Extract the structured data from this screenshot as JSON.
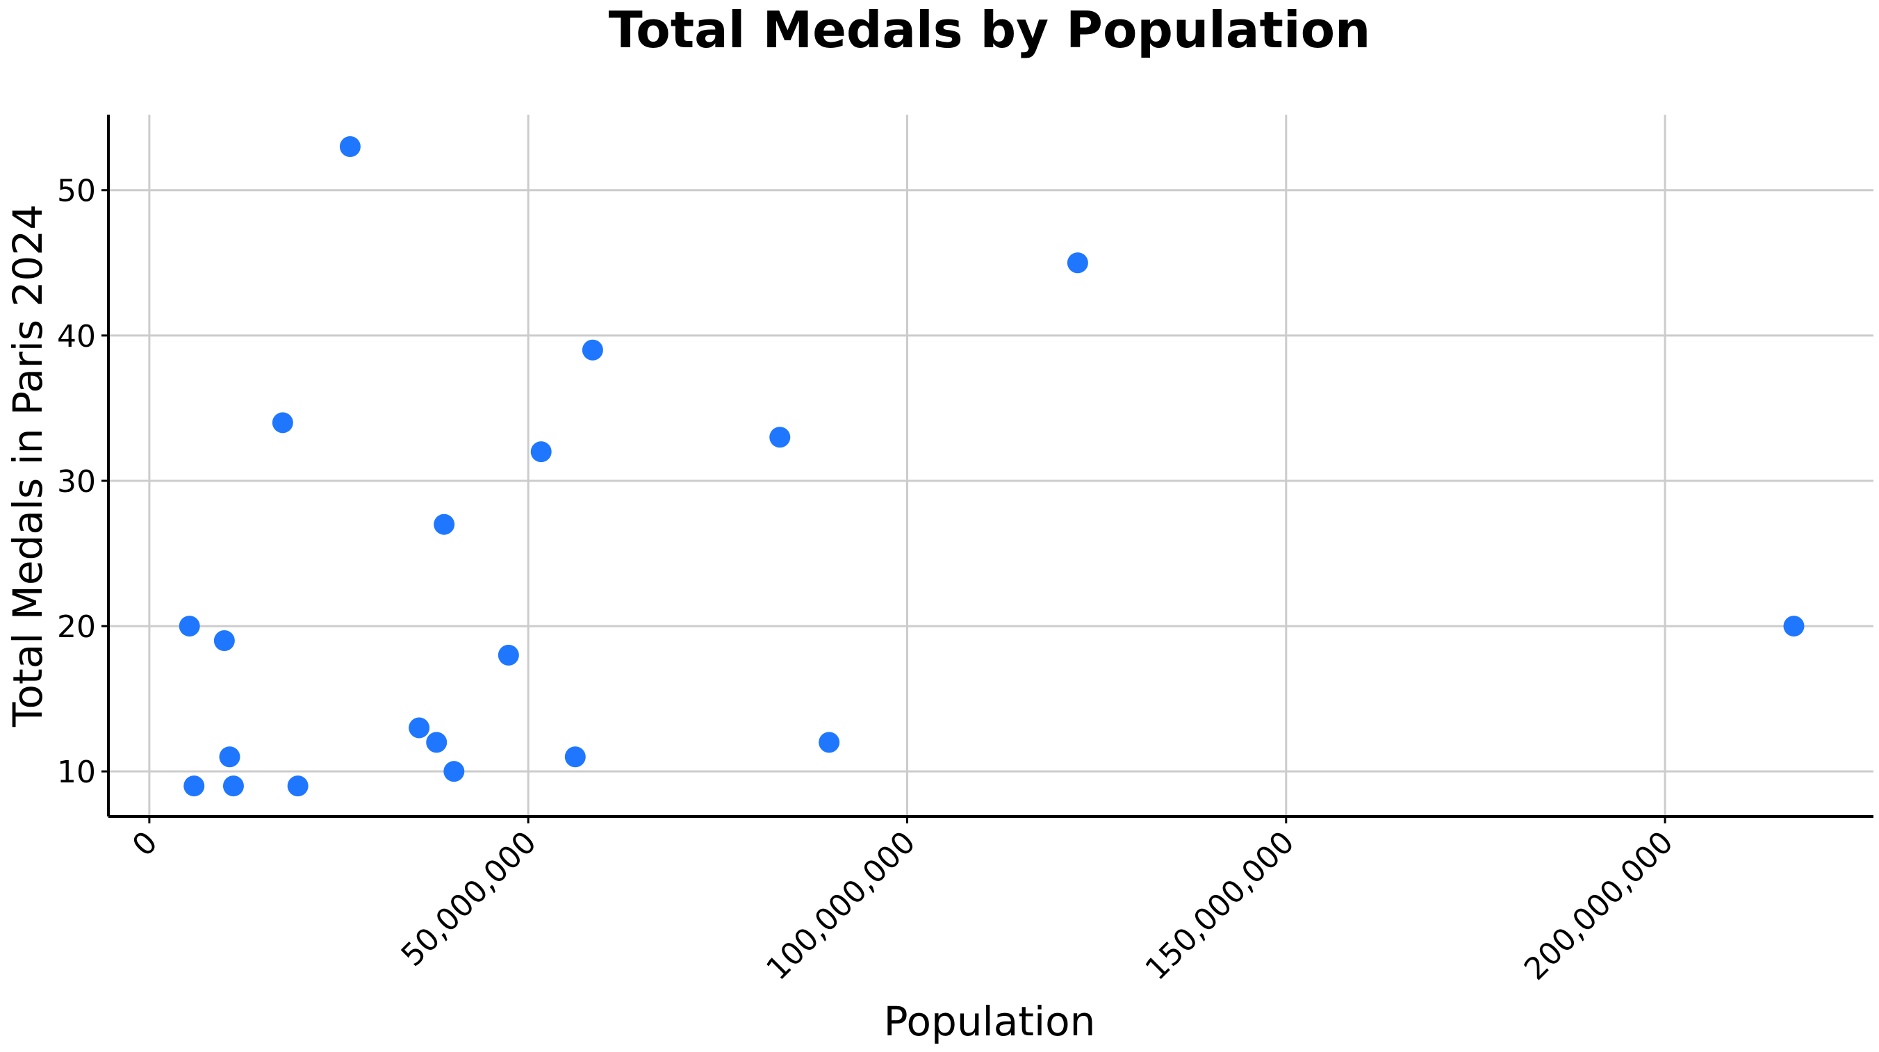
{
  "chart_data": {
    "type": "scatter",
    "title": "Total Medals by Population",
    "xlabel": "Population",
    "ylabel": "Total Medals in Paris 2024",
    "xlim": [
      -5400000,
      227500000
    ],
    "ylim": [
      6.9,
      55.2
    ],
    "x_ticks": [
      0,
      50000000,
      100000000,
      150000000,
      200000000
    ],
    "x_tick_labels": [
      "0",
      "50,000,000",
      "100,000,000",
      "150,000,000",
      "200,000,000"
    ],
    "y_ticks": [
      10,
      20,
      30,
      40,
      50
    ],
    "y_tick_labels": [
      "10",
      "20",
      "30",
      "40",
      "50"
    ],
    "grid": true,
    "marker_color": "#1f77ff",
    "series": [
      {
        "points": [
          {
            "x": 26500000,
            "y": 53
          },
          {
            "x": 122500000,
            "y": 45
          },
          {
            "x": 58500000,
            "y": 39
          },
          {
            "x": 17600000,
            "y": 34
          },
          {
            "x": 83200000,
            "y": 33
          },
          {
            "x": 51700000,
            "y": 32
          },
          {
            "x": 38900000,
            "y": 27
          },
          {
            "x": 5300000,
            "y": 20
          },
          {
            "x": 217000000,
            "y": 20
          },
          {
            "x": 9900000,
            "y": 19
          },
          {
            "x": 47400000,
            "y": 18
          },
          {
            "x": 35600000,
            "y": 13
          },
          {
            "x": 37900000,
            "y": 12
          },
          {
            "x": 89700000,
            "y": 12
          },
          {
            "x": 10600000,
            "y": 11
          },
          {
            "x": 56200000,
            "y": 11
          },
          {
            "x": 40200000,
            "y": 10
          },
          {
            "x": 5900000,
            "y": 9
          },
          {
            "x": 11100000,
            "y": 9
          },
          {
            "x": 19600000,
            "y": 9
          }
        ]
      }
    ]
  }
}
